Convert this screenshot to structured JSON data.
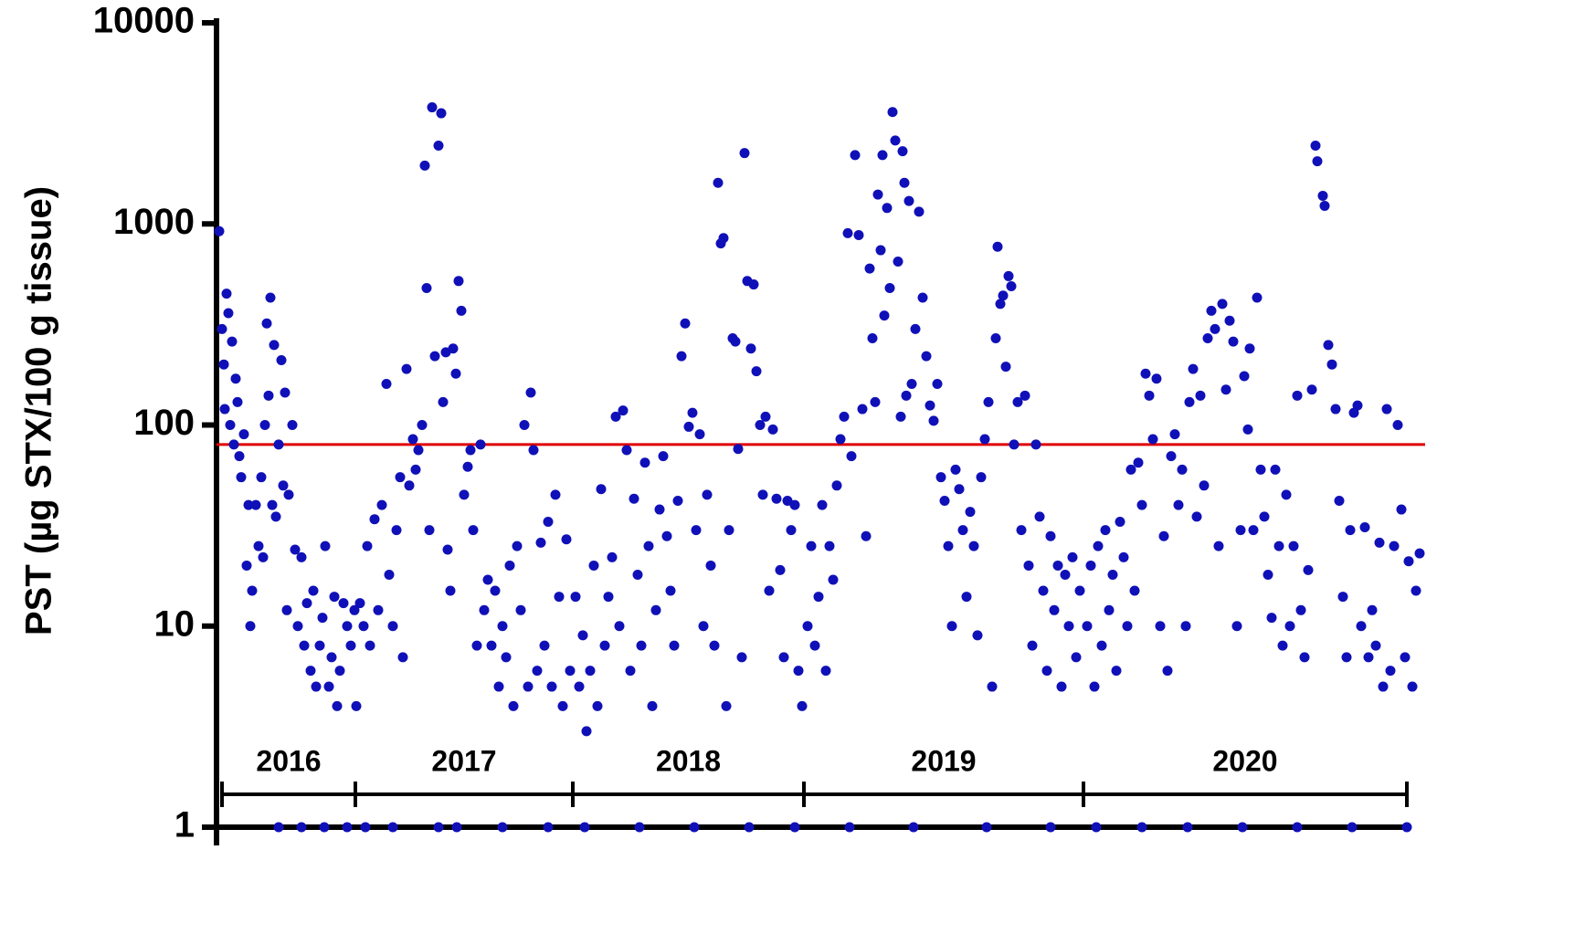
{
  "chart_data": {
    "type": "scatter",
    "ylabel": "PST (µg STX/100 g tissue)",
    "yscale": "log",
    "ylim": [
      1,
      10000
    ],
    "yticks": [
      1,
      10,
      100,
      1000,
      10000
    ],
    "xlim": [
      0,
      1320
    ],
    "threshold": 80,
    "threshold_color": "#e00000",
    "year_axis": {
      "ticks": [
        3,
        149,
        387,
        640,
        946,
        1300
      ],
      "labels": [
        "2016",
        "2017",
        "2018",
        "2019",
        "2020"
      ]
    },
    "series": [
      {
        "color": "#1010b8",
        "x": [
          0,
          3,
          5,
          6,
          8,
          10,
          12,
          14,
          16,
          18,
          20,
          22,
          24,
          27,
          30,
          32,
          34,
          36,
          40,
          43,
          46,
          48,
          50,
          52,
          54,
          56,
          58,
          60,
          62,
          65,
          68,
          70,
          72,
          74,
          76,
          80,
          83,
          86,
          90,
          93,
          96,
          100,
          103,
          106,
          110,
          113,
          116,
          120,
          123,
          126,
          129,
          132,
          136,
          140,
          144,
          148,
          150,
          154,
          158,
          162,
          165,
          170,
          174,
          178,
          183,
          186,
          190,
          194,
          198,
          201,
          205,
          208,
          212,
          215,
          218,
          222,
          225,
          227,
          230,
          233,
          236,
          240,
          243,
          245,
          248,
          250,
          253,
          256,
          259,
          262,
          265,
          268,
          272,
          275,
          278,
          282,
          286,
          290,
          294,
          298,
          302,
          306,
          310,
          314,
          318,
          322,
          326,
          330,
          334,
          338,
          341,
          344,
          348,
          352,
          356,
          360,
          364,
          368,
          372,
          376,
          380,
          384,
          390,
          394,
          398,
          402,
          406,
          410,
          414,
          418,
          422,
          426,
          430,
          434,
          438,
          442,
          446,
          450,
          454,
          458,
          462,
          466,
          470,
          474,
          478,
          482,
          486,
          490,
          494,
          498,
          502,
          506,
          510,
          514,
          518,
          522,
          526,
          530,
          534,
          538,
          542,
          546,
          549,
          552,
          555,
          558,
          562,
          565,
          568,
          572,
          575,
          578,
          582,
          585,
          588,
          592,
          595,
          598,
          602,
          606,
          610,
          614,
          618,
          622,
          626,
          630,
          634,
          638,
          644,
          648,
          652,
          656,
          660,
          664,
          668,
          672,
          676,
          680,
          684,
          688,
          692,
          696,
          700,
          704,
          708,
          712,
          715,
          718,
          721,
          724,
          726,
          728,
          731,
          734,
          737,
          740,
          743,
          746,
          748,
          750,
          752,
          755,
          758,
          762,
          766,
          770,
          774,
          778,
          782,
          786,
          790,
          794,
          798,
          802,
          806,
          810,
          814,
          818,
          822,
          826,
          830,
          834,
          838,
          842,
          846,
          850,
          852,
          855,
          858,
          861,
          864,
          867,
          870,
          874,
          878,
          882,
          886,
          890,
          894,
          898,
          902,
          906,
          910,
          914,
          918,
          922,
          926,
          930,
          934,
          938,
          942,
          950,
          954,
          958,
          962,
          966,
          970,
          974,
          978,
          982,
          986,
          990,
          994,
          998,
          1002,
          1006,
          1010,
          1014,
          1018,
          1022,
          1026,
          1030,
          1034,
          1038,
          1042,
          1046,
          1050,
          1054,
          1058,
          1062,
          1066,
          1070,
          1074,
          1078,
          1082,
          1086,
          1090,
          1094,
          1098,
          1102,
          1106,
          1110,
          1114,
          1118,
          1122,
          1126,
          1128,
          1132,
          1136,
          1140,
          1144,
          1148,
          1152,
          1156,
          1160,
          1164,
          1168,
          1172,
          1176,
          1180,
          1184,
          1188,
          1192,
          1196,
          1200,
          1202,
          1208,
          1210,
          1214,
          1218,
          1222,
          1226,
          1230,
          1234,
          1238,
          1242,
          1246,
          1250,
          1254,
          1258,
          1262,
          1266,
          1270,
          1274,
          1278,
          1282,
          1286,
          1290,
          1294,
          1298,
          1302,
          1306,
          1310,
          1314,
          65,
          90,
          115,
          140,
          160,
          190,
          240,
          260,
          310,
          360,
          400,
          460,
          520,
          580,
          630,
          690,
          760,
          840,
          910,
          960,
          1010,
          1060,
          1120,
          1180,
          1240,
          1300
        ],
        "values": [
          920,
          300,
          200,
          120,
          450,
          360,
          100,
          260,
          80,
          170,
          130,
          70,
          55,
          90,
          20,
          40,
          10,
          15,
          40,
          25,
          55,
          22,
          100,
          320,
          140,
          430,
          40,
          250,
          35,
          80,
          210,
          50,
          145,
          12,
          45,
          100,
          24,
          10,
          22,
          8,
          13,
          6,
          15,
          5,
          8,
          11,
          25,
          5,
          7,
          14,
          4,
          6,
          13,
          10,
          8,
          12,
          4,
          13,
          10,
          25,
          8,
          34,
          12,
          40,
          160,
          18,
          10,
          30,
          55,
          7,
          190,
          50,
          85,
          60,
          75,
          100,
          1950,
          480,
          30,
          3800,
          220,
          2450,
          3550,
          130,
          230,
          24,
          15,
          240,
          180,
          520,
          370,
          45,
          62,
          75,
          30,
          8,
          80,
          12,
          17,
          8,
          15,
          5,
          10,
          7,
          20,
          4,
          25,
          12,
          100,
          5,
          145,
          75,
          6,
          26,
          8,
          33,
          5,
          45,
          14,
          4,
          27,
          6,
          14,
          5,
          9,
          3,
          6,
          20,
          4,
          48,
          8,
          14,
          22,
          110,
          10,
          118,
          75,
          6,
          43,
          18,
          8,
          65,
          25,
          4,
          12,
          38,
          70,
          28,
          15,
          8,
          42,
          220,
          320,
          98,
          115,
          30,
          90,
          10,
          45,
          20,
          8,
          1600,
          800,
          850,
          4,
          30,
          270,
          260,
          76,
          7,
          2250,
          520,
          240,
          500,
          185,
          100,
          45,
          110,
          15,
          95,
          43,
          19,
          7,
          42,
          30,
          40,
          6,
          4,
          10,
          25,
          8,
          14,
          40,
          6,
          25,
          17,
          50,
          85,
          110,
          900,
          70,
          2200,
          880,
          120,
          28,
          600,
          270,
          130,
          1400,
          740,
          2200,
          350,
          1200,
          480,
          3600,
          2600,
          650,
          110,
          2300,
          1600,
          140,
          1300,
          160,
          300,
          1150,
          430,
          220,
          125,
          105,
          160,
          55,
          42,
          25,
          10,
          60,
          48,
          30,
          14,
          37,
          25,
          9,
          55,
          85,
          130,
          5,
          270,
          770,
          400,
          440,
          195,
          550,
          490,
          80,
          130,
          30,
          140,
          20,
          8,
          80,
          35,
          15,
          6,
          28,
          12,
          20,
          5,
          18,
          10,
          22,
          7,
          15,
          10,
          20,
          5,
          25,
          8,
          30,
          12,
          18,
          6,
          33,
          22,
          10,
          60,
          15,
          65,
          40,
          180,
          140,
          85,
          170,
          10,
          28,
          6,
          70,
          90,
          40,
          60,
          10,
          130,
          190,
          35,
          140,
          50,
          270,
          370,
          300,
          25,
          400,
          150,
          330,
          260,
          10,
          30,
          175,
          95,
          240,
          30,
          430,
          60,
          35,
          18,
          11,
          60,
          25,
          8,
          45,
          10,
          25,
          140,
          12,
          7,
          19,
          150,
          2450,
          2050,
          1380,
          1230,
          250,
          200,
          120,
          42,
          14,
          7,
          30,
          115,
          125,
          10,
          31,
          7,
          12,
          8,
          26,
          5,
          120,
          6,
          25,
          100,
          38,
          7,
          21,
          5,
          15,
          23,
          1,
          1,
          1,
          1,
          1,
          1,
          1,
          1,
          1,
          1,
          1,
          1,
          1,
          1,
          1,
          1,
          1,
          1,
          1,
          1,
          1,
          1,
          1,
          1,
          1,
          1
        ]
      }
    ]
  }
}
